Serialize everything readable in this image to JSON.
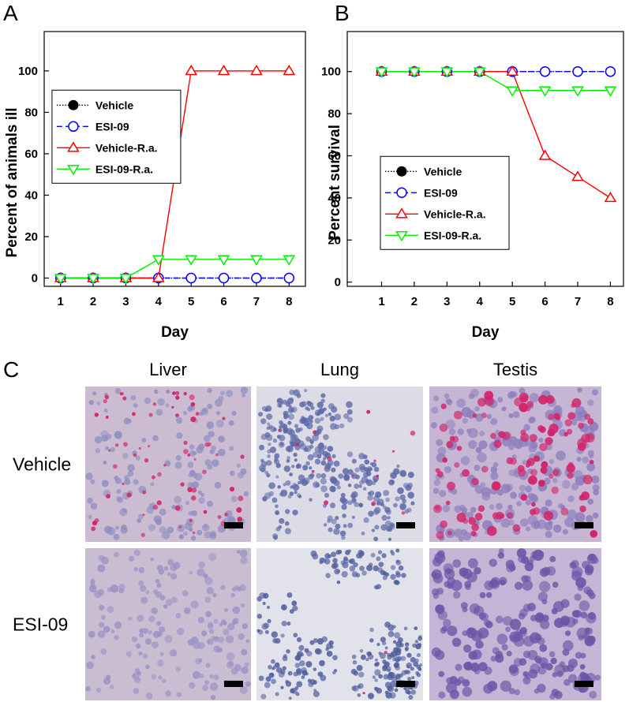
{
  "chart_data": [
    {
      "type": "line",
      "label": "A",
      "x_label": "Day",
      "y_label": "Percent of animals ill",
      "x": [
        1,
        2,
        3,
        4,
        5,
        6,
        7,
        8
      ],
      "xlim": [
        0.5,
        8.5
      ],
      "xticks": [
        1,
        2,
        3,
        4,
        5,
        6,
        7,
        8
      ],
      "ylim": [
        -4,
        119
      ],
      "yticks": [
        0,
        20,
        40,
        60,
        80,
        100
      ],
      "legend": "center-left",
      "series": [
        {
          "name": "Vehicle",
          "color": "#000000",
          "line_style": "dotted",
          "marker": "filled-circle",
          "values": [
            0,
            0,
            0,
            0,
            0,
            0,
            0,
            0
          ]
        },
        {
          "name": "ESI-09",
          "color": "#0000ff",
          "line_style": "dashed",
          "marker": "open-circle",
          "values": [
            0,
            0,
            0,
            0,
            0,
            0,
            0,
            0
          ]
        },
        {
          "name": "Vehicle-R.a.",
          "color": "#ff0000",
          "line_style": "solid",
          "marker": "triangle-up",
          "values": [
            0,
            0,
            0,
            0,
            100,
            100,
            100,
            100
          ]
        },
        {
          "name": "ESI-09-R.a.",
          "color": "#00ee00",
          "line_style": "solid",
          "marker": "triangle-down",
          "values": [
            0,
            0,
            0,
            9,
            9,
            9,
            9,
            9
          ]
        }
      ]
    },
    {
      "type": "line",
      "label": "B",
      "x_label": "Day",
      "y_label": "Percent survival",
      "x": [
        1,
        2,
        3,
        4,
        5,
        6,
        7,
        8
      ],
      "xlim": [
        -0.05,
        8.4
      ],
      "xticks": [
        1,
        2,
        3,
        4,
        5,
        6,
        7,
        8
      ],
      "ylim": [
        -2,
        119
      ],
      "yticks": [
        0,
        20,
        40,
        60,
        80,
        100
      ],
      "legend": "lower-left",
      "series": [
        {
          "name": "Vehicle",
          "color": "#000000",
          "line_style": "dotted",
          "marker": "filled-circle",
          "values": [
            100,
            100,
            100,
            100,
            100,
            100,
            100,
            100
          ]
        },
        {
          "name": "ESI-09",
          "color": "#0000ff",
          "line_style": "dashed",
          "marker": "open-circle",
          "values": [
            100,
            100,
            100,
            100,
            100,
            100,
            100,
            100
          ]
        },
        {
          "name": "Vehicle-R.a.",
          "color": "#ff0000",
          "line_style": "solid",
          "marker": "triangle-up",
          "values": [
            100,
            100,
            100,
            100,
            100,
            60,
            50,
            40
          ]
        },
        {
          "name": "ESI-09-R.a.",
          "color": "#00ee00",
          "line_style": "solid",
          "marker": "triangle-down",
          "values": [
            100,
            100,
            100,
            100,
            91,
            91,
            91,
            91
          ]
        }
      ]
    }
  ],
  "panel_c": {
    "label": "C",
    "columns": [
      "Liver",
      "Lung",
      "Testis"
    ],
    "rows": [
      "Vehicle",
      "ESI-09"
    ]
  }
}
